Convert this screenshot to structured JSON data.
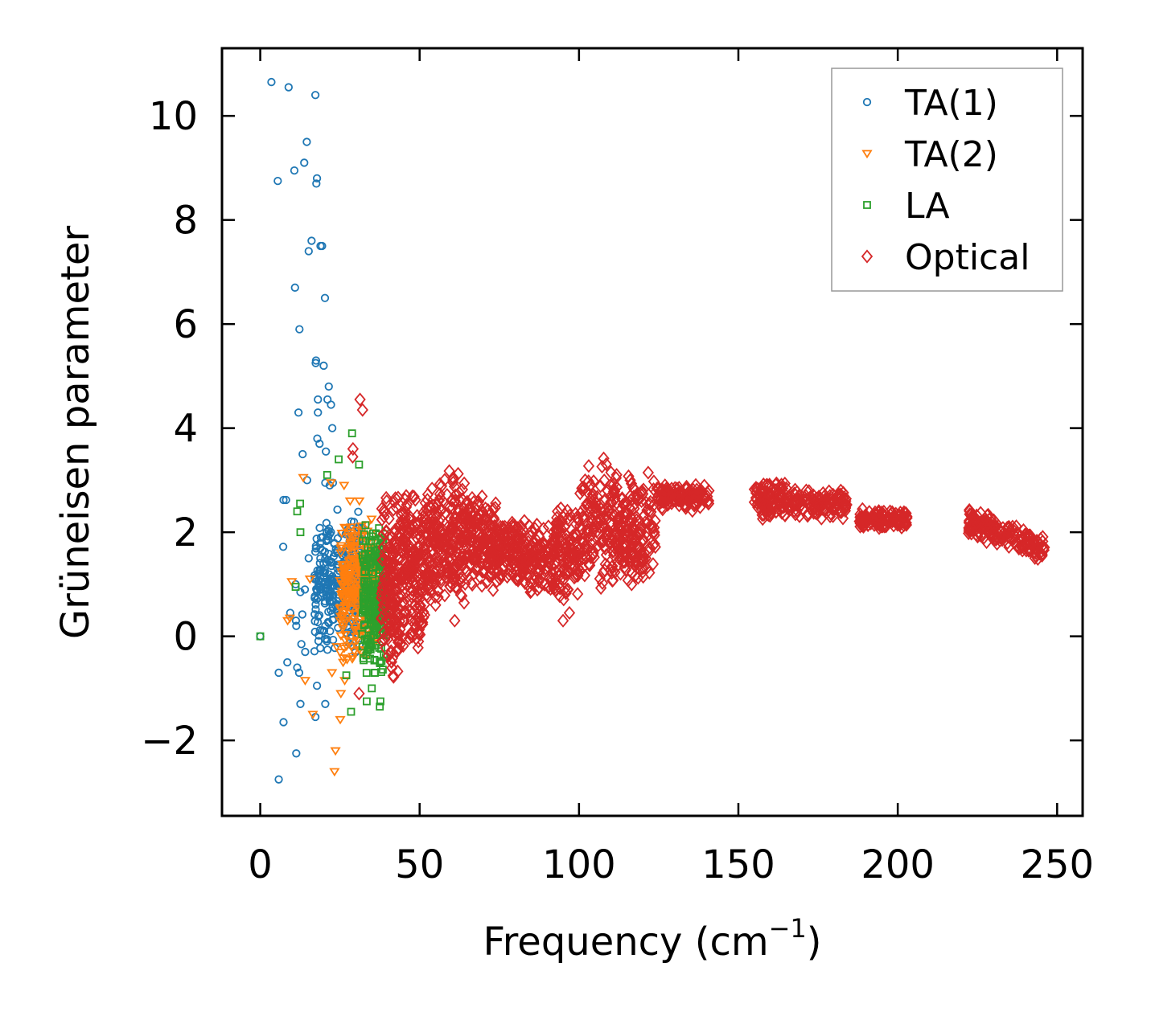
{
  "chart_data": {
    "type": "scatter",
    "title": "",
    "xlabel_base": "Frequency (cm",
    "xlabel_sup": "−1",
    "xlabel_close": ")",
    "ylabel": "Grüneisen parameter",
    "xlim": [
      -12,
      258
    ],
    "ylim": [
      -3.45,
      11.3
    ],
    "xticks": [
      0,
      50,
      100,
      150,
      200,
      250
    ],
    "xtick_labels": [
      "0",
      "50",
      "100",
      "150",
      "200",
      "250"
    ],
    "yticks": [
      -2,
      0,
      2,
      4,
      6,
      8,
      10
    ],
    "ytick_labels": [
      "−2",
      "0",
      "2",
      "4",
      "6",
      "8",
      "10"
    ],
    "grid": false,
    "legend_position": "top-right",
    "series": [
      {
        "name": "TA(1)",
        "marker": "circle",
        "color": "#1f77b4",
        "points": [
          [
            0,
            0
          ],
          [
            3.5,
            10.65
          ],
          [
            8.9,
            10.55
          ],
          [
            17.3,
            10.4
          ],
          [
            14.6,
            9.5
          ],
          [
            13.8,
            9.1
          ],
          [
            10.7,
            8.95
          ],
          [
            5.5,
            8.75
          ],
          [
            17.8,
            8.8
          ],
          [
            17.6,
            8.7
          ],
          [
            16.1,
            7.6
          ],
          [
            18.9,
            7.5
          ],
          [
            19.4,
            7.5
          ],
          [
            15.2,
            7.4
          ],
          [
            10.9,
            6.7
          ],
          [
            20.3,
            6.5
          ],
          [
            12.3,
            5.9
          ],
          [
            17.5,
            5.3
          ],
          [
            17.4,
            5.25
          ],
          [
            19.9,
            5.2
          ],
          [
            21.5,
            4.8
          ],
          [
            18.1,
            4.55
          ],
          [
            21.1,
            4.55
          ],
          [
            22.2,
            4.45
          ],
          [
            12.0,
            4.3
          ],
          [
            18.1,
            4.3
          ],
          [
            22.6,
            4.0
          ],
          [
            17.9,
            3.8
          ],
          [
            18.6,
            3.7
          ],
          [
            13.3,
            3.5
          ],
          [
            20.6,
            3.55
          ],
          [
            14.7,
            3.0
          ],
          [
            20.4,
            2.95
          ],
          [
            21.8,
            2.9
          ],
          [
            22.8,
            2.95
          ],
          [
            7.3,
            2.62
          ],
          [
            8.1,
            2.62
          ],
          [
            7.2,
            1.72
          ],
          [
            19.5,
            1.65
          ],
          [
            15.2,
            1.5
          ],
          [
            11.1,
            1.0
          ],
          [
            14.0,
            0.9
          ],
          [
            12.6,
            0.85
          ],
          [
            18.3,
            0.95
          ],
          [
            9.4,
            0.45
          ],
          [
            13.2,
            0.42
          ],
          [
            11.2,
            0.3
          ],
          [
            11.3,
            0.2
          ],
          [
            20.4,
            0.2
          ],
          [
            12.9,
            -0.15
          ],
          [
            14.1,
            -0.3
          ],
          [
            8.5,
            -0.5
          ],
          [
            11.6,
            -0.6
          ],
          [
            5.8,
            -0.7
          ],
          [
            12.2,
            -0.7
          ],
          [
            17.8,
            -0.95
          ],
          [
            12.6,
            -1.3
          ],
          [
            20.4,
            -1.3
          ],
          [
            17.3,
            -1.55
          ],
          [
            7.3,
            -1.65
          ],
          [
            11.3,
            -2.25
          ],
          [
            5.8,
            -2.75
          ]
        ],
        "clusters": [
          {
            "x": [
              17,
              32
            ],
            "y": [
              -0.4,
              2.5
            ],
            "n": 300
          }
        ]
      },
      {
        "name": "TA(2)",
        "marker": "triangle-down",
        "color": "#ff7f0e",
        "points": [
          [
            13.5,
            3.05
          ],
          [
            26.3,
            2.9
          ],
          [
            22.2,
            2.95
          ],
          [
            31.1,
            2.6
          ],
          [
            28.2,
            2.6
          ],
          [
            9.9,
            1.05
          ],
          [
            15.6,
            1.1
          ],
          [
            9.3,
            0.35
          ],
          [
            8.6,
            0.3
          ],
          [
            14.1,
            -0.85
          ],
          [
            26.5,
            -0.85
          ],
          [
            25.3,
            -1.1
          ],
          [
            16.5,
            -1.5
          ],
          [
            25.1,
            -1.6
          ],
          [
            23.6,
            -2.2
          ],
          [
            23.3,
            -2.6
          ],
          [
            26.0,
            -0.5
          ],
          [
            22.5,
            -0.7
          ],
          [
            24.0,
            -0.2
          ],
          [
            30.0,
            0.0
          ]
        ],
        "clusters": [
          {
            "x": [
              25,
              37
            ],
            "y": [
              -0.6,
              2.4
            ],
            "n": 300
          }
        ]
      },
      {
        "name": "LA",
        "marker": "square",
        "color": "#2ca02c",
        "points": [
          [
            0,
            0
          ],
          [
            28.8,
            3.9
          ],
          [
            24.6,
            3.4
          ],
          [
            31.0,
            3.3
          ],
          [
            21.0,
            3.1
          ],
          [
            12.5,
            2.55
          ],
          [
            11.6,
            2.4
          ],
          [
            12.6,
            2.0
          ],
          [
            11.1,
            0.95
          ],
          [
            27.0,
            -0.75
          ],
          [
            33.4,
            -1.25
          ],
          [
            37.7,
            -1.25
          ],
          [
            37.5,
            -1.35
          ],
          [
            28.5,
            -1.45
          ],
          [
            35.0,
            -1.0
          ],
          [
            36.0,
            -0.7
          ]
        ],
        "clusters": [
          {
            "x": [
              32,
              39.5
            ],
            "y": [
              -0.8,
              2.2
            ],
            "n": 260
          }
        ]
      },
      {
        "name": "Optical",
        "marker": "diamond",
        "color": "#d62728",
        "points": [
          [
            31.3,
            4.55
          ],
          [
            32.1,
            4.35
          ],
          [
            29.1,
            3.6
          ],
          [
            29.0,
            3.45
          ],
          [
            31.0,
            -1.1
          ],
          [
            45.0,
            0.3
          ],
          [
            55.0,
            0.6
          ],
          [
            61.0,
            0.3
          ],
          [
            95.0,
            0.3
          ],
          [
            97.0,
            0.45
          ],
          [
            113.0,
            1.2
          ],
          [
            117.5,
            1.85
          ],
          [
            119.5,
            1.6
          ]
        ],
        "clusters": [
          {
            "x": [
              38,
              44
            ],
            "y": [
              -1.0,
              2.9
            ],
            "n": 170
          },
          {
            "x": [
              44,
              52
            ],
            "y": [
              -0.4,
              2.9
            ],
            "n": 200
          },
          {
            "x": [
              52,
              64
            ],
            "y": [
              0.5,
              3.3
            ],
            "n": 240
          },
          {
            "x": [
              64,
              74
            ],
            "y": [
              0.8,
              2.8
            ],
            "n": 180
          },
          {
            "x": [
              74,
              82
            ],
            "y": [
              0.9,
              2.4
            ],
            "n": 120
          },
          {
            "x": [
              82,
              92
            ],
            "y": [
              0.7,
              2.3
            ],
            "n": 130
          },
          {
            "x": [
              92,
              100
            ],
            "y": [
              0.6,
              2.5
            ],
            "n": 120
          },
          {
            "x": [
              100,
              112
            ],
            "y": [
              0.9,
              3.5
            ],
            "n": 170
          },
          {
            "x": [
              112,
              124
            ],
            "y": [
              0.8,
              3.2
            ],
            "n": 170
          },
          {
            "x": [
              124,
              141
            ],
            "y": [
              2.4,
              2.95
            ],
            "n": 140
          },
          {
            "x": [
              155,
              165
            ],
            "y": [
              2.2,
              3.0
            ],
            "n": 100
          },
          {
            "x": [
              165,
              184
            ],
            "y": [
              2.25,
              2.85
            ],
            "n": 140
          },
          {
            "x": [
              188,
              203
            ],
            "y": [
              2.05,
              2.45
            ],
            "n": 120
          },
          {
            "x": [
              222,
              246
            ],
            "y": [
              1.9,
              2.5
            ],
            "n": 180,
            "trend": -0.022
          }
        ]
      }
    ]
  }
}
